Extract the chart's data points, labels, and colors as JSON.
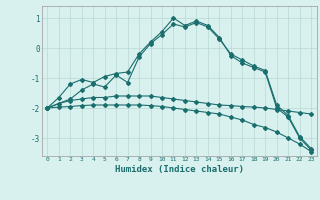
{
  "xlabel": "Humidex (Indice chaleur)",
  "background_color": "#d8f0ee",
  "grid_color": "#b8d8d4",
  "line_color": "#1a6e6e",
  "xlim": [
    -0.5,
    23.5
  ],
  "ylim": [
    -3.6,
    1.4
  ],
  "yticks": [
    1,
    0,
    -1,
    -2,
    -3
  ],
  "xticks": [
    0,
    1,
    2,
    3,
    4,
    5,
    6,
    7,
    8,
    9,
    10,
    11,
    12,
    13,
    14,
    15,
    16,
    17,
    18,
    19,
    20,
    21,
    22,
    23
  ],
  "series1_x": [
    0,
    1,
    2,
    3,
    4,
    5,
    6,
    7,
    8,
    9,
    10,
    11,
    12,
    13,
    14,
    15,
    16,
    17,
    18,
    19,
    20,
    21,
    22,
    23
  ],
  "series1_y": [
    -2.0,
    -1.65,
    -1.2,
    -1.05,
    -1.15,
    -0.95,
    -0.85,
    -0.8,
    -0.2,
    0.2,
    0.55,
    1.0,
    0.75,
    0.9,
    0.75,
    0.35,
    -0.25,
    -0.5,
    -0.65,
    -0.8,
    -2.0,
    -2.3,
    -3.0,
    -3.4
  ],
  "series2_x": [
    0,
    1,
    2,
    3,
    4,
    5,
    6,
    7,
    8,
    9,
    10,
    11,
    12,
    13,
    14,
    15,
    16,
    17,
    18,
    19,
    20,
    21,
    22,
    23
  ],
  "series2_y": [
    -2.0,
    -1.85,
    -1.75,
    -1.7,
    -1.65,
    -1.65,
    -1.6,
    -1.6,
    -1.6,
    -1.6,
    -1.65,
    -1.7,
    -1.75,
    -1.8,
    -1.85,
    -1.9,
    -1.92,
    -1.95,
    -1.97,
    -2.0,
    -2.05,
    -2.1,
    -2.15,
    -2.2
  ],
  "series3_x": [
    0,
    1,
    2,
    3,
    4,
    5,
    6,
    7,
    8,
    9,
    10,
    11,
    12,
    13,
    14,
    15,
    16,
    17,
    18,
    19,
    20,
    21,
    22,
    23
  ],
  "series3_y": [
    -2.0,
    -1.97,
    -1.95,
    -1.92,
    -1.9,
    -1.9,
    -1.9,
    -1.9,
    -1.9,
    -1.92,
    -1.95,
    -2.0,
    -2.05,
    -2.1,
    -2.15,
    -2.2,
    -2.3,
    -2.4,
    -2.55,
    -2.65,
    -2.8,
    -3.0,
    -3.2,
    -3.45
  ],
  "series4_x": [
    0,
    2,
    3,
    4,
    5,
    6,
    7,
    8,
    9,
    10,
    11,
    12,
    13,
    14,
    15,
    16,
    17,
    18,
    19,
    20,
    21,
    22,
    23
  ],
  "series4_y": [
    -2.0,
    -1.7,
    -1.4,
    -1.2,
    -1.3,
    -0.9,
    -1.15,
    -0.3,
    0.15,
    0.45,
    0.8,
    0.7,
    0.85,
    0.7,
    0.3,
    -0.2,
    -0.4,
    -0.6,
    -0.75,
    -1.9,
    -2.25,
    -2.95,
    -3.35
  ]
}
